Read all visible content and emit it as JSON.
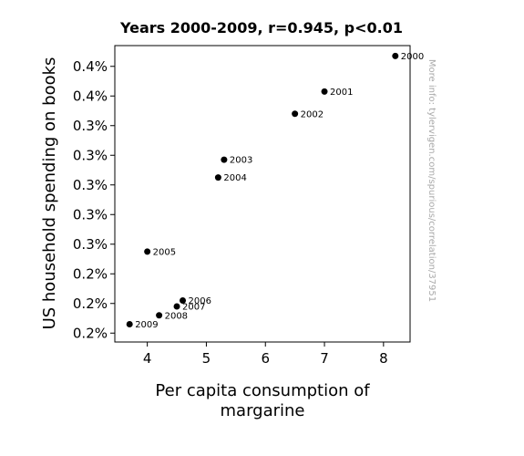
{
  "chart_data": {
    "type": "scatter",
    "title": "Years 2000-2009, r=0.945, p<0.01",
    "xlabel_lines": [
      "Per capita consumption of",
      "margarine"
    ],
    "ylabel": "US household spending on books",
    "xlim": [
      3.45,
      8.45
    ],
    "ylim": [
      0.00184,
      0.00384
    ],
    "x_ticks": [
      4,
      5,
      6,
      7,
      8
    ],
    "x_tick_labels": [
      "4",
      "5",
      "6",
      "7",
      "8"
    ],
    "y_ticks": [
      0.0019,
      0.0021,
      0.0023,
      0.0025,
      0.0027,
      0.0029,
      0.0031,
      0.0033,
      0.0035,
      0.0037
    ],
    "y_tick_labels": [
      "0.2%",
      "0.2%",
      "0.2%",
      "0.3%",
      "0.3%",
      "0.3%",
      "0.3%",
      "0.3%",
      "0.4%",
      "0.4%"
    ],
    "points": [
      {
        "label": "2000",
        "x": 8.2,
        "y": 0.00377
      },
      {
        "label": "2001",
        "x": 7.0,
        "y": 0.00353
      },
      {
        "label": "2002",
        "x": 6.5,
        "y": 0.00338
      },
      {
        "label": "2003",
        "x": 5.3,
        "y": 0.00307
      },
      {
        "label": "2004",
        "x": 5.2,
        "y": 0.00295
      },
      {
        "label": "2005",
        "x": 4.0,
        "y": 0.00245
      },
      {
        "label": "2006",
        "x": 4.6,
        "y": 0.00212
      },
      {
        "label": "2007",
        "x": 4.5,
        "y": 0.00208
      },
      {
        "label": "2008",
        "x": 4.2,
        "y": 0.00202
      },
      {
        "label": "2009",
        "x": 3.7,
        "y": 0.00196
      }
    ],
    "grid": false,
    "marker_color": "#000000"
  },
  "watermark": "More info: tylervigen.com/spurious/correlation/37951"
}
